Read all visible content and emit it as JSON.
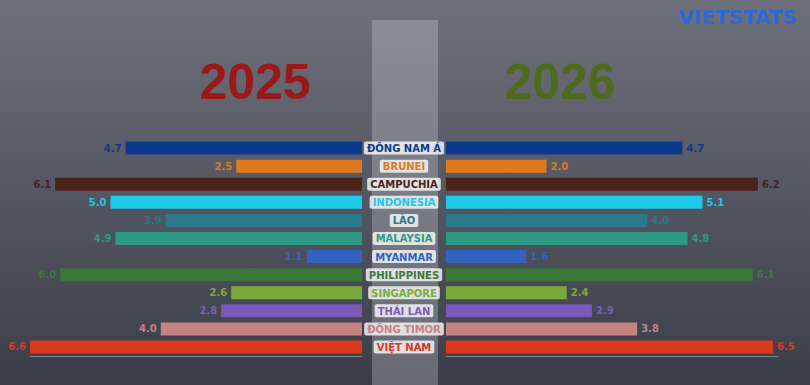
{
  "source": "VIETSTATS",
  "chart_data": [
    {
      "type": "bar",
      "title": "2025",
      "orientation": "horizontal",
      "categories": [
        "ĐÔNG NAM Á",
        "BRUNEI",
        "CAMPUCHIA",
        "INDONESIA",
        "LÀO",
        "MALAYSIA",
        "MYANMAR",
        "PHILIPPINES",
        "SINGAPORE",
        "THÁI LAN",
        "ĐÔNG TIMOR",
        "VIỆT NAM"
      ],
      "values": [
        4.7,
        2.5,
        6.1,
        5.0,
        3.9,
        4.9,
        1.1,
        6.0,
        2.6,
        2.8,
        4.0,
        6.6
      ],
      "value_labels": [
        "4.7",
        "2.5",
        "6.1",
        "5.0",
        "3.9",
        "4.9",
        "1.1",
        "6.0",
        "2.6",
        "2.8",
        "4.0",
        "6.6"
      ],
      "colors": [
        "#0e3a8e",
        "#e0781e",
        "#4a2218",
        "#20c8ea",
        "#2a7888",
        "#2c9a82",
        "#3262c2",
        "#3a783a",
        "#7aaa3a",
        "#7a5ab8",
        "#c48282",
        "#d83a1e"
      ],
      "title_color": "#9a1a1a",
      "xlim": [
        0,
        6.6
      ],
      "grid": false,
      "data_labels": true,
      "tick_labels": "y"
    },
    {
      "type": "bar",
      "title": "2026",
      "orientation": "horizontal",
      "categories": [
        "ĐÔNG NAM Á",
        "BRUNEI",
        "CAMPUCHIA",
        "INDONESIA",
        "LÀO",
        "MALAYSIA",
        "MYANMAR",
        "PHILIPPINES",
        "SINGAPORE",
        "THÁI LAN",
        "ĐÔNG TIMOR",
        "VIỆT NAM"
      ],
      "values": [
        4.7,
        2.0,
        6.2,
        5.1,
        4.0,
        4.8,
        1.6,
        6.1,
        2.4,
        2.9,
        3.8,
        6.5
      ],
      "value_labels": [
        "4.7",
        "2.0",
        "6.2",
        "5.1",
        "4.0",
        "4.8",
        "1.6",
        "6.1",
        "2.4",
        "2.9",
        "3.8",
        "6.5"
      ],
      "colors": [
        "#0e3a8e",
        "#e0781e",
        "#4a2218",
        "#20c8ea",
        "#2a7888",
        "#2c9a82",
        "#3262c2",
        "#3a783a",
        "#7aaa3a",
        "#7a5ab8",
        "#c48282",
        "#d83a1e"
      ],
      "title_color": "#4e6a1c",
      "xlim": [
        0,
        6.6
      ],
      "grid": false,
      "data_labels": true,
      "tick_labels": false
    }
  ]
}
